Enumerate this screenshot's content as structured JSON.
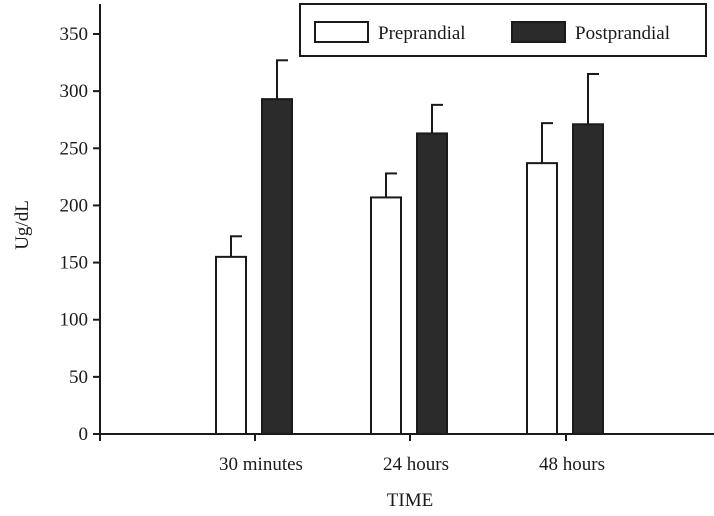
{
  "chart_data": {
    "type": "bar",
    "title": "",
    "xlabel": "TIME",
    "ylabel": "Ug/dL",
    "categories": [
      "30 minutes",
      "24 hours",
      "48 hours"
    ],
    "ylim": [
      0,
      350
    ],
    "yticks": [
      0,
      50,
      100,
      150,
      200,
      250,
      300,
      350
    ],
    "series": [
      {
        "name": "Preprandial",
        "color": "#ffffff",
        "values": [
          155,
          207,
          237
        ],
        "error_upper": [
          173,
          228,
          272
        ]
      },
      {
        "name": "Postprandial",
        "color": "#2b2b2b",
        "values": [
          293,
          263,
          271
        ],
        "error_upper": [
          327,
          288,
          315
        ]
      }
    ],
    "legend": {
      "position": "top-right",
      "border": true
    },
    "grid": false
  }
}
